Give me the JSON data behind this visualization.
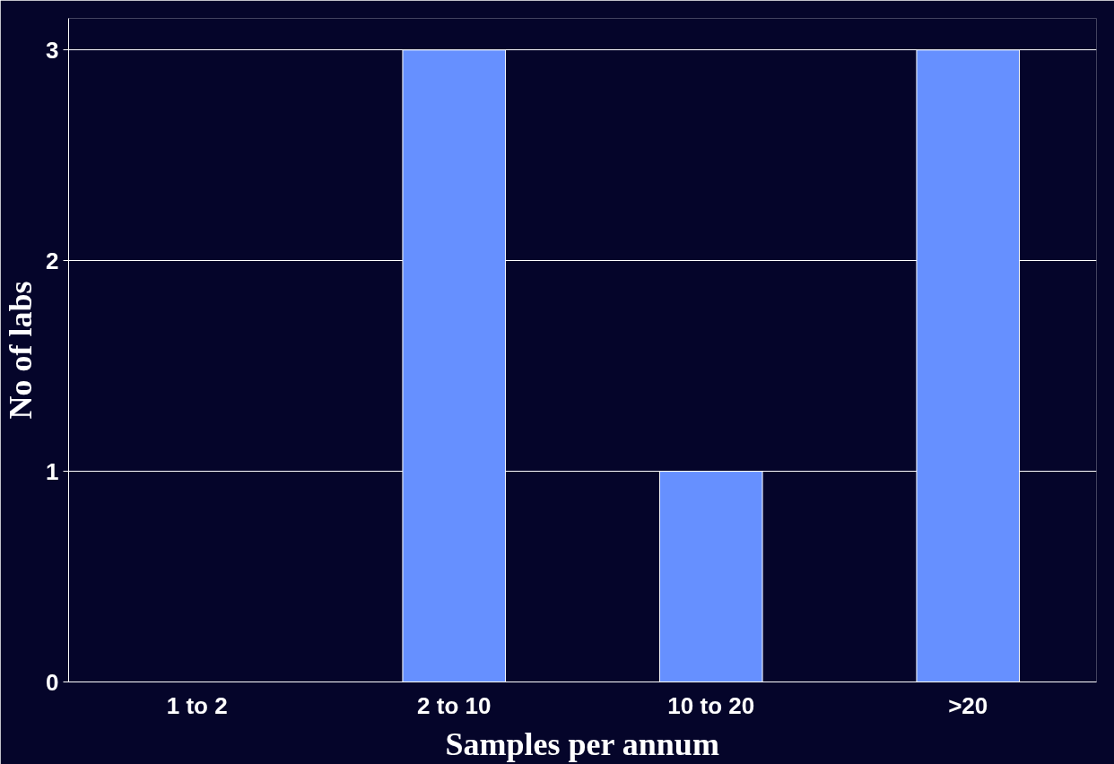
{
  "chart_data": {
    "type": "bar",
    "xlabel": "Samples per annum",
    "ylabel": "No of labs",
    "categories": [
      "1 to 2",
      "2 to 10",
      "10 to 20",
      ">20"
    ],
    "values": [
      0,
      3,
      1,
      3
    ],
    "color": "#6690ff",
    "ylim": [
      0,
      3
    ],
    "yticks": [
      0,
      1,
      2,
      3
    ],
    "grid": "y"
  }
}
